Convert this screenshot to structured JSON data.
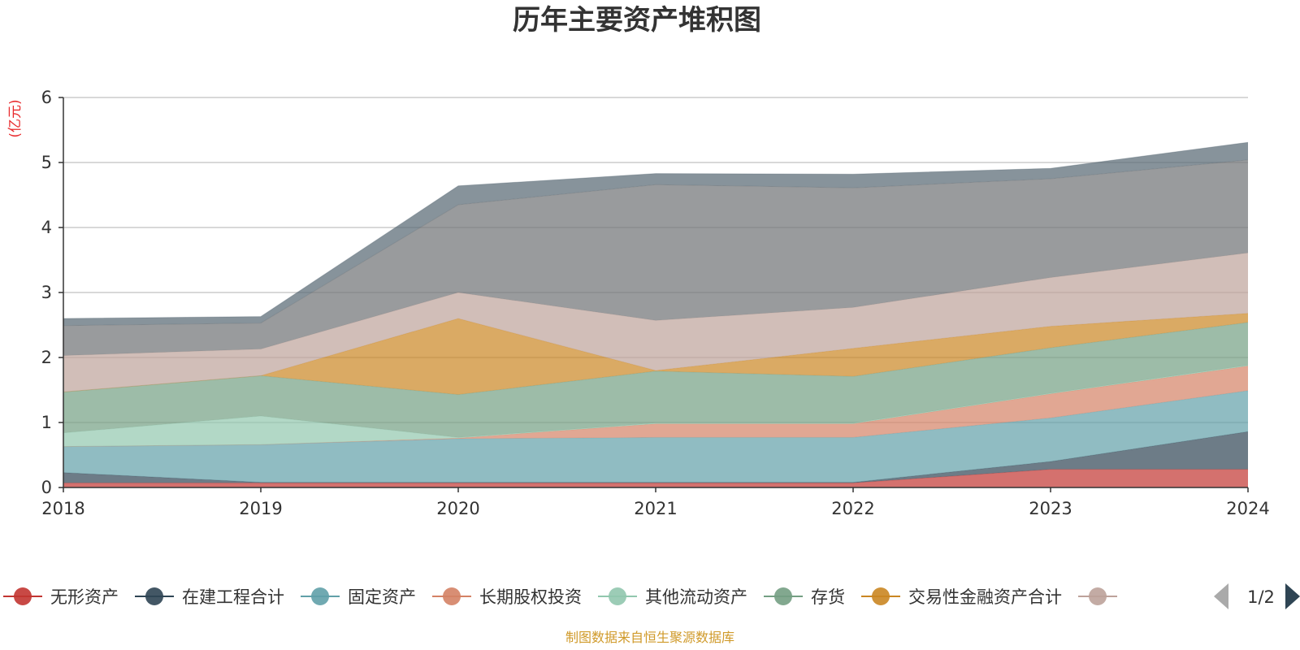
{
  "chart_data": {
    "type": "area",
    "stacked": true,
    "title": "历年主要资产堆积图",
    "ylabel": "(亿元)",
    "x": [
      "2018",
      "2019",
      "2020",
      "2021",
      "2022",
      "2023",
      "2024"
    ],
    "ylim": [
      0,
      6
    ],
    "yticks": [
      "0",
      "1",
      "2",
      "3",
      "4",
      "5",
      "6"
    ],
    "grid": true,
    "series": [
      {
        "name": "无形资产",
        "color": "#c23531",
        "values": [
          0.07,
          0.07,
          0.07,
          0.07,
          0.07,
          0.28,
          0.28
        ]
      },
      {
        "name": "在建工程合计",
        "color": "#2f4554",
        "values": [
          0.16,
          0.01,
          0.01,
          0.01,
          0.01,
          0.12,
          0.58
        ]
      },
      {
        "name": "固定资产",
        "color": "#61a0a8",
        "values": [
          0.4,
          0.58,
          0.67,
          0.69,
          0.69,
          0.67,
          0.63
        ]
      },
      {
        "name": "长期股权投资",
        "color": "#d48265",
        "values": [
          0,
          0,
          0.01,
          0.21,
          0.21,
          0.37,
          0.38
        ]
      },
      {
        "name": "其他流动资产",
        "color": "#91c7ae",
        "values": [
          0.21,
          0.44,
          0.01,
          0.01,
          0.01,
          0.01,
          0.01
        ]
      },
      {
        "name": "存货",
        "color": "#749f83",
        "values": [
          0.63,
          0.62,
          0.66,
          0.8,
          0.72,
          0.7,
          0.66
        ]
      },
      {
        "name": "交易性金融资产合计",
        "color": "#ca8622",
        "values": [
          0,
          0,
          1.17,
          0.01,
          0.43,
          0.33,
          0.14
        ]
      },
      {
        "name": "",
        "color": "#bda29a",
        "values": [
          0.56,
          0.41,
          0.4,
          0.77,
          0.63,
          0.75,
          0.93
        ]
      },
      {
        "name": "",
        "color": "#6e7074",
        "values": [
          0.46,
          0.4,
          1.35,
          2.09,
          1.84,
          1.52,
          1.43
        ]
      },
      {
        "name": "",
        "color": "#546570",
        "values": [
          0.11,
          0.1,
          0.29,
          0.17,
          0.21,
          0.16,
          0.27
        ]
      }
    ],
    "legend": {
      "placement": "bottom",
      "visible_count": 8,
      "page_label": "1/2"
    },
    "source_note": "制图数据来自恒生聚源数据库"
  }
}
